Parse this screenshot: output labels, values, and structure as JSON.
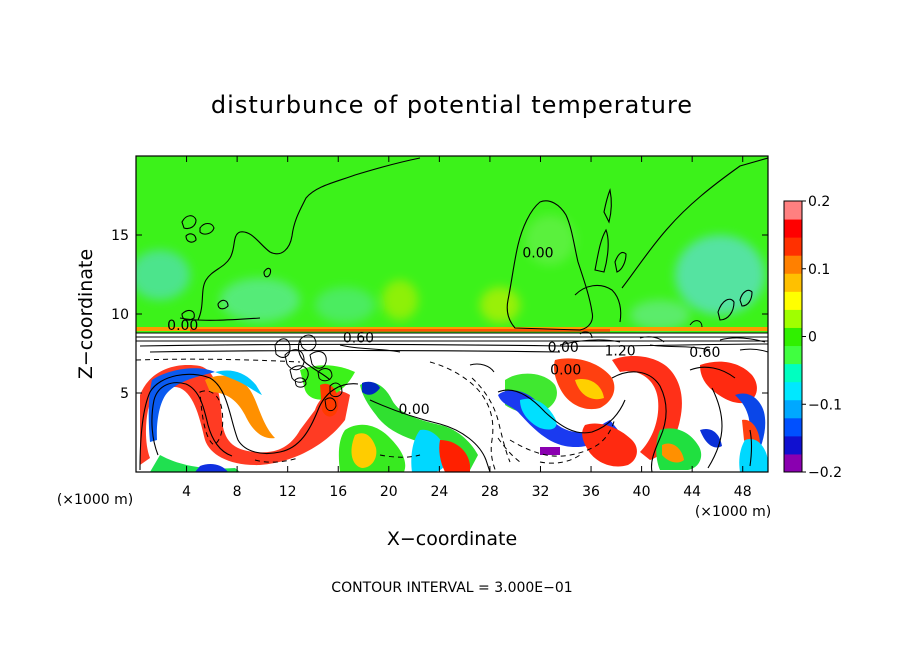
{
  "chart_data": {
    "type": "heatmap",
    "title": "disturbunce of potential temperature",
    "xlabel": "X−coordinate",
    "ylabel": "Z−coordinate",
    "x_unit": "(×1000 m)",
    "x_unit_right": "(×1000 m)",
    "y_unit": "",
    "xlim": [
      0,
      50
    ],
    "ylim": [
      0,
      20
    ],
    "x_ticks": [
      4,
      8,
      12,
      16,
      20,
      24,
      28,
      32,
      36,
      40,
      44,
      48
    ],
    "x_tick_labels": [
      "4",
      "8",
      "12",
      "16",
      "20",
      "24",
      "28",
      "32",
      "36",
      "40",
      "44",
      "48"
    ],
    "y_ticks": [
      5,
      10,
      15
    ],
    "y_tick_labels": [
      "5",
      "10",
      "15"
    ],
    "colorbar": {
      "range": [
        -0.2,
        0.2
      ],
      "ticks": [
        0.2,
        0.1,
        0,
        -0.1,
        -0.2
      ],
      "tick_labels": [
        "0.2",
        "0.1",
        "0",
        "−0.1",
        "−0.2"
      ],
      "colors": [
        "#8a00b0",
        "#1010d0",
        "#0050ff",
        "#00a8ff",
        "#00e8ff",
        "#00ffc0",
        "#40ff40",
        "#30f000",
        "#a0ff00",
        "#ffff00",
        "#ffc000",
        "#ff8000",
        "#ff3000",
        "#ff0000",
        "#ff8080"
      ]
    },
    "contour_labels": [
      {
        "text": "0.00",
        "x": 3.7,
        "z": 9.3
      },
      {
        "text": "0.60",
        "x": 17.6,
        "z": 8.5
      },
      {
        "text": "0.00",
        "x": 22.0,
        "z": 4.0
      },
      {
        "text": "0.00",
        "x": 33.8,
        "z": 7.9
      },
      {
        "text": "0.00",
        "x": 34.0,
        "z": 6.5
      },
      {
        "text": "1.20",
        "x": 38.3,
        "z": 7.7
      },
      {
        "text": "0.00",
        "x": 31.8,
        "z": 13.9
      },
      {
        "text": "0.60",
        "x": 45.0,
        "z": 7.6
      }
    ],
    "contour_interval_text": "CONTOUR INTERVAL = 3.000E−01"
  }
}
